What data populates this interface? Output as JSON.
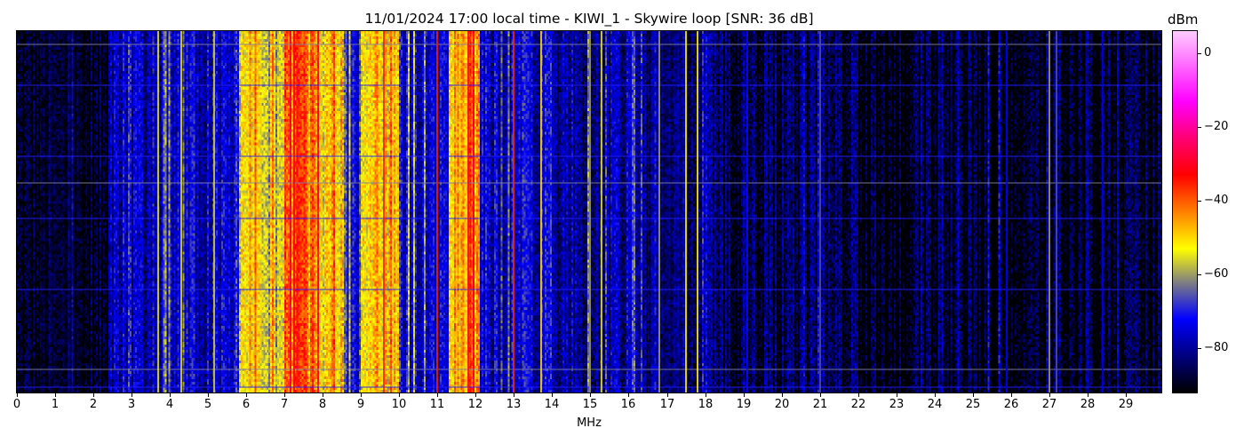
{
  "chart_data": {
    "type": "heatmap",
    "title": "11/01/2024 17:00 local time - KIWI_1 - Skywire loop [SNR: 36 dB]",
    "xlabel": "MHz",
    "xlim": [
      0,
      30
    ],
    "xticks": [
      "0",
      "1",
      "2",
      "3",
      "4",
      "5",
      "6",
      "7",
      "8",
      "9",
      "10",
      "11",
      "12",
      "13",
      "14",
      "15",
      "16",
      "17",
      "18",
      "19",
      "20",
      "21",
      "22",
      "23",
      "24",
      "25",
      "26",
      "27",
      "28",
      "29"
    ],
    "colorbar": {
      "label": "dBm",
      "range": [
        -92,
        6
      ],
      "ticks": [
        "0",
        "−20",
        "−40",
        "−60",
        "−80"
      ],
      "tick_values": [
        0,
        -20,
        -40,
        -60,
        -80
      ],
      "colormap": [
        {
          "v": -92,
          "color": "#000000"
        },
        {
          "v": -82,
          "color": "#000080"
        },
        {
          "v": -72,
          "color": "#0000ff"
        },
        {
          "v": -62,
          "color": "#808080"
        },
        {
          "v": -53,
          "color": "#ffff00"
        },
        {
          "v": -43,
          "color": "#ff8000"
        },
        {
          "v": -33,
          "color": "#ff0000"
        },
        {
          "v": -22,
          "color": "#ff0080"
        },
        {
          "v": -13,
          "color": "#ff00ff"
        },
        {
          "v": 6,
          "color": "#ffccff"
        }
      ]
    },
    "bands_mhz_mean_dbm": [
      {
        "from": 0,
        "to": 2.4,
        "level": -90
      },
      {
        "from": 2.4,
        "to": 5.8,
        "level": -77
      },
      {
        "from": 5.8,
        "to": 6.8,
        "level": -56
      },
      {
        "from": 6.8,
        "to": 7.0,
        "level": -50
      },
      {
        "from": 7.0,
        "to": 7.8,
        "level": -42
      },
      {
        "from": 7.8,
        "to": 8.5,
        "level": -50
      },
      {
        "from": 8.5,
        "to": 9.0,
        "level": -70
      },
      {
        "from": 9.0,
        "to": 10.0,
        "level": -50
      },
      {
        "from": 10.0,
        "to": 11.3,
        "level": -74
      },
      {
        "from": 11.3,
        "to": 12.1,
        "level": -48
      },
      {
        "from": 12.1,
        "to": 14.0,
        "level": -76
      },
      {
        "from": 14.0,
        "to": 16.0,
        "level": -80
      },
      {
        "from": 16.0,
        "to": 18.0,
        "level": -82
      },
      {
        "from": 18.0,
        "to": 22.0,
        "level": -86
      },
      {
        "from": 22.0,
        "to": 30.0,
        "level": -90
      }
    ],
    "signals_mhz_dbm": [
      {
        "f": 3.7,
        "level": -55
      },
      {
        "f": 4.3,
        "level": -55
      },
      {
        "f": 5.15,
        "level": -56
      },
      {
        "f": 7.25,
        "level": -33
      },
      {
        "f": 9.6,
        "level": -35
      },
      {
        "f": 11.0,
        "level": -35
      },
      {
        "f": 11.8,
        "level": -34
      },
      {
        "f": 13.0,
        "level": -36
      },
      {
        "f": 13.7,
        "level": -50
      },
      {
        "f": 15.0,
        "level": -60
      },
      {
        "f": 15.3,
        "level": -55
      },
      {
        "f": 16.8,
        "level": -60
      },
      {
        "f": 17.5,
        "level": -52
      },
      {
        "f": 17.8,
        "level": -52
      },
      {
        "f": 19.1,
        "level": -72
      },
      {
        "f": 21.0,
        "level": -66
      },
      {
        "f": 25.9,
        "level": -72
      },
      {
        "f": 27.0,
        "level": -60
      },
      {
        "f": 27.2,
        "level": -66
      },
      {
        "f": 28.4,
        "level": -74
      }
    ]
  }
}
